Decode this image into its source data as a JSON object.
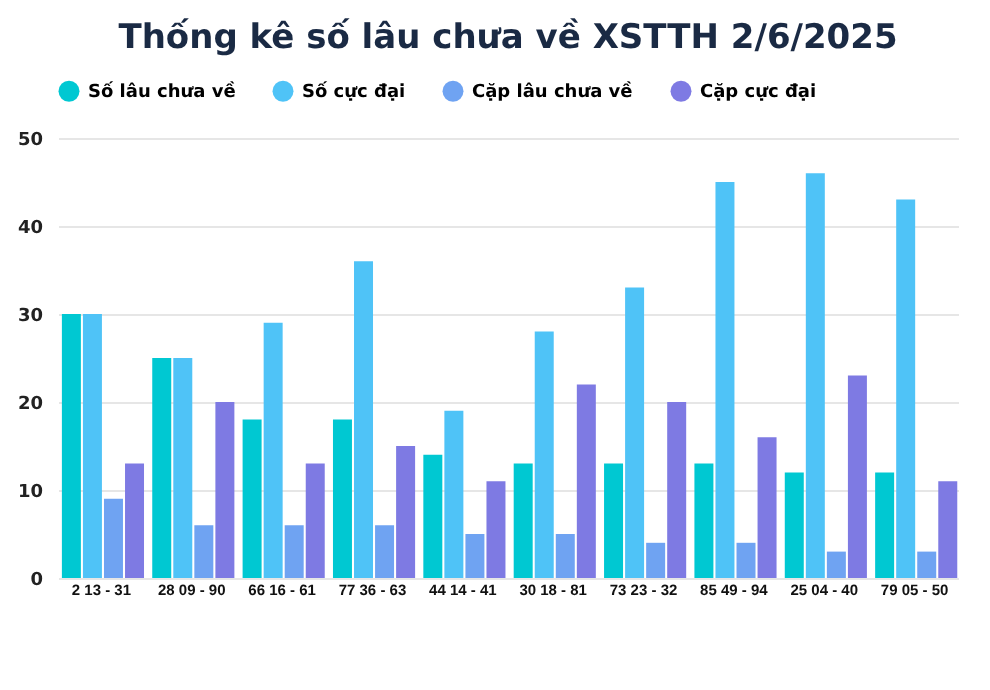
{
  "chart_data": {
    "type": "bar",
    "title": "Thống kê số lâu chưa về XSTTH 2/6/2025",
    "categories": [
      "2 13 - 31",
      "28 09 - 90",
      "66 16 - 61",
      "77 36 - 63",
      "44 14 - 41",
      "30 18 - 81",
      "73 23 - 32",
      "85 49 - 94",
      "25 04 - 40",
      "79 05 - 50"
    ],
    "series": [
      {
        "name": "Số lâu chưa về",
        "color": "#00c8d2",
        "values": [
          30,
          25,
          18,
          18,
          14,
          13,
          13,
          13,
          12,
          12
        ]
      },
      {
        "name": "Số cực đại",
        "color": "#4fc3f7",
        "values": [
          30,
          25,
          29,
          36,
          19,
          28,
          33,
          45,
          46,
          43
        ]
      },
      {
        "name": "Cặp lâu chưa về",
        "color": "#6fa3f2",
        "values": [
          9,
          6,
          6,
          6,
          5,
          5,
          4,
          4,
          3,
          3
        ]
      },
      {
        "name": "Cặp cực đại",
        "color": "#7e7ae3",
        "values": [
          13,
          20,
          13,
          15,
          11,
          22,
          20,
          16,
          23,
          11
        ]
      }
    ],
    "ylim": [
      0,
      50
    ],
    "yticks": [
      0,
      10,
      20,
      30,
      40,
      50
    ],
    "grid": "y",
    "legend": "top"
  }
}
